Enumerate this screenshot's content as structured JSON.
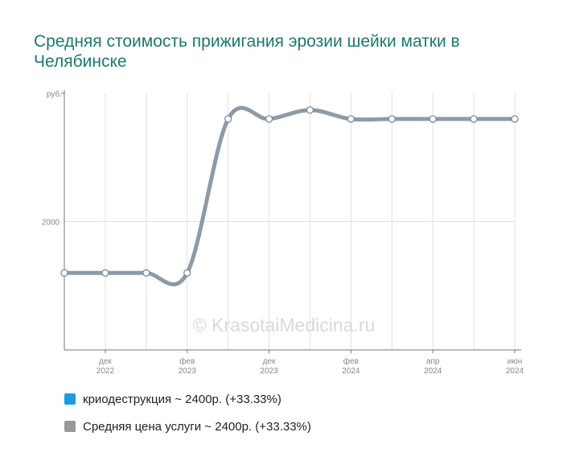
{
  "chart_data": {
    "type": "line",
    "title": "Средняя стоимость прижигания эрозии шейки матки в Челябинске",
    "ylabel": "руб.",
    "y_ticks": [
      2000
    ],
    "ylim": [
      1000,
      3000
    ],
    "x_ticks": [
      {
        "month": "дек",
        "year": "2022",
        "t": 1
      },
      {
        "month": "фев",
        "year": "2023",
        "t": 3
      },
      {
        "month": "дек",
        "year": "2023",
        "t": 5
      },
      {
        "month": "фев",
        "year": "2024",
        "t": 7
      },
      {
        "month": "апр",
        "year": "2024",
        "t": 9
      },
      {
        "month": "июн",
        "year": "2024",
        "t": 11
      }
    ],
    "grid": true,
    "series": [
      {
        "name": "Средняя цена услуги ~ 2400р. (+33.33%)",
        "color": "#8c9ba6",
        "points": [
          {
            "t": 0,
            "y": 1600
          },
          {
            "t": 1,
            "y": 1600
          },
          {
            "t": 2,
            "y": 1600
          },
          {
            "t": 3,
            "y": 1600
          },
          {
            "t": 4,
            "y": 2800
          },
          {
            "t": 5,
            "y": 2800
          },
          {
            "t": 6,
            "y": 2870
          },
          {
            "t": 7,
            "y": 2800
          },
          {
            "t": 8,
            "y": 2800
          },
          {
            "t": 9,
            "y": 2800
          },
          {
            "t": 10,
            "y": 2800
          },
          {
            "t": 11,
            "y": 2800
          }
        ]
      }
    ]
  },
  "watermark": "© KrasotaiMedicina.ru",
  "legend": [
    {
      "label": "криодеструкция ~ 2400р. (+33.33%)",
      "color": "#1e9be0"
    },
    {
      "label": "Средняя цена услуги ~ 2400р. (+33.33%)",
      "color": "#999999"
    }
  ]
}
